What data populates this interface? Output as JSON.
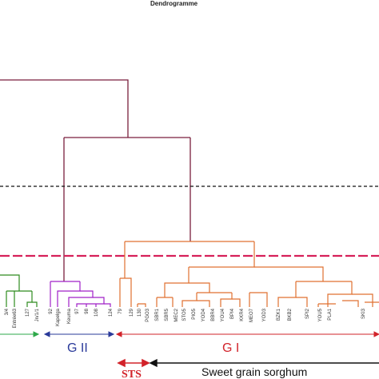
{
  "title": "Dendrogramme",
  "colors": {
    "root": "#7a1f3d",
    "g1": "#e07030",
    "g2": "#a020c8",
    "g3": "#2e8b1e",
    "cut_line": "#d6205a",
    "threshold": "#111111",
    "arrow_g1": "#d2232a",
    "arrow_g2": "#2a3a9a",
    "arrow_g3": "#2ea84a",
    "sts": "#d2232a",
    "sgs": "#111111"
  },
  "groups": {
    "g1": "G I",
    "g2": "G II"
  },
  "sts_label": "STS",
  "sgs_label": "Sweet grain sorghum",
  "leaves": {
    "g3": [
      "3/4",
      "127",
      "Jn/1/1"
    ],
    "g3_partial": "Entrée63",
    "g2": [
      "92",
      "Kapelga",
      "Keuma",
      "97",
      "98",
      "108",
      "124"
    ],
    "g1": [
      "79",
      "129",
      "130",
      "PGO3",
      "SBR1",
      "SBR5",
      "MEC2",
      "STO5",
      "PIO5",
      "YOD4",
      "BBR4",
      "YOU4",
      "BPI4",
      "KKR4",
      "MEO7",
      "YOD3",
      "BZK1",
      "BKB2",
      "SPI2",
      "YOU5",
      "PLA1",
      "SKI3"
    ]
  }
}
